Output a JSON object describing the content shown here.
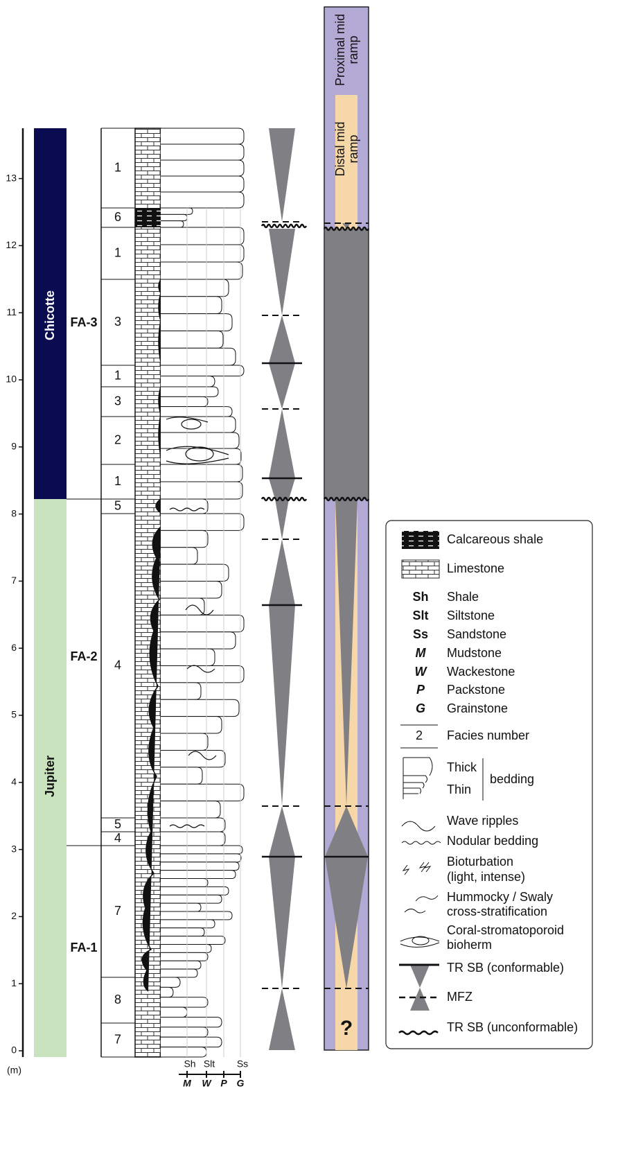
{
  "depth_axis": {
    "unit": "(m)",
    "ticks": [
      0,
      1,
      2,
      3,
      4,
      5,
      6,
      7,
      8,
      9,
      10,
      11,
      12,
      13
    ]
  },
  "formations": [
    "Chicotte",
    "Jupiter"
  ],
  "facies_associations": [
    "FA-3",
    "FA-2",
    "FA-1"
  ],
  "facies_numbers": [
    "1",
    "6",
    "1",
    "3",
    "1",
    "3",
    "2",
    "1",
    "5",
    "4",
    "5",
    "4",
    "7",
    "8",
    "7"
  ],
  "lithology_scale": {
    "grain_size": [
      "Sh",
      "Slt",
      "Ss"
    ],
    "texture": [
      "M",
      "W",
      "P",
      "G"
    ]
  },
  "environments": {
    "proximal": [
      "Proximal mid",
      "ramp"
    ],
    "distal": [
      "Distal mid",
      "ramp"
    ],
    "unknown": "?"
  },
  "legend": {
    "lithologies": [
      "Calcareous shale",
      "Limestone"
    ],
    "abbreviations": [
      {
        "code": "Sh",
        "meaning": "Shale"
      },
      {
        "code": "Slt",
        "meaning": "Siltstone"
      },
      {
        "code": "Ss",
        "meaning": "Sandstone"
      },
      {
        "code": "M",
        "meaning": "Mudstone"
      },
      {
        "code": "W",
        "meaning": "Wackestone"
      },
      {
        "code": "P",
        "meaning": "Packstone"
      },
      {
        "code": "G",
        "meaning": "Grainstone"
      }
    ],
    "facies_number": {
      "example": "2",
      "label": "Facies number"
    },
    "bedding": {
      "thick": "Thick",
      "thin": "Thin",
      "label": "bedding"
    },
    "structures": [
      [
        "Wave ripples"
      ],
      [
        "Nodular bedding"
      ],
      [
        "Bioturbation",
        "(light, intense)"
      ],
      [
        "Hummocky / Swaly",
        "cross-stratification"
      ],
      [
        "Coral-stromatoporoid",
        "bioherm"
      ]
    ],
    "surfaces": [
      "TR SB (conformable)",
      "MFZ",
      "TR SB (unconformable)"
    ]
  }
}
